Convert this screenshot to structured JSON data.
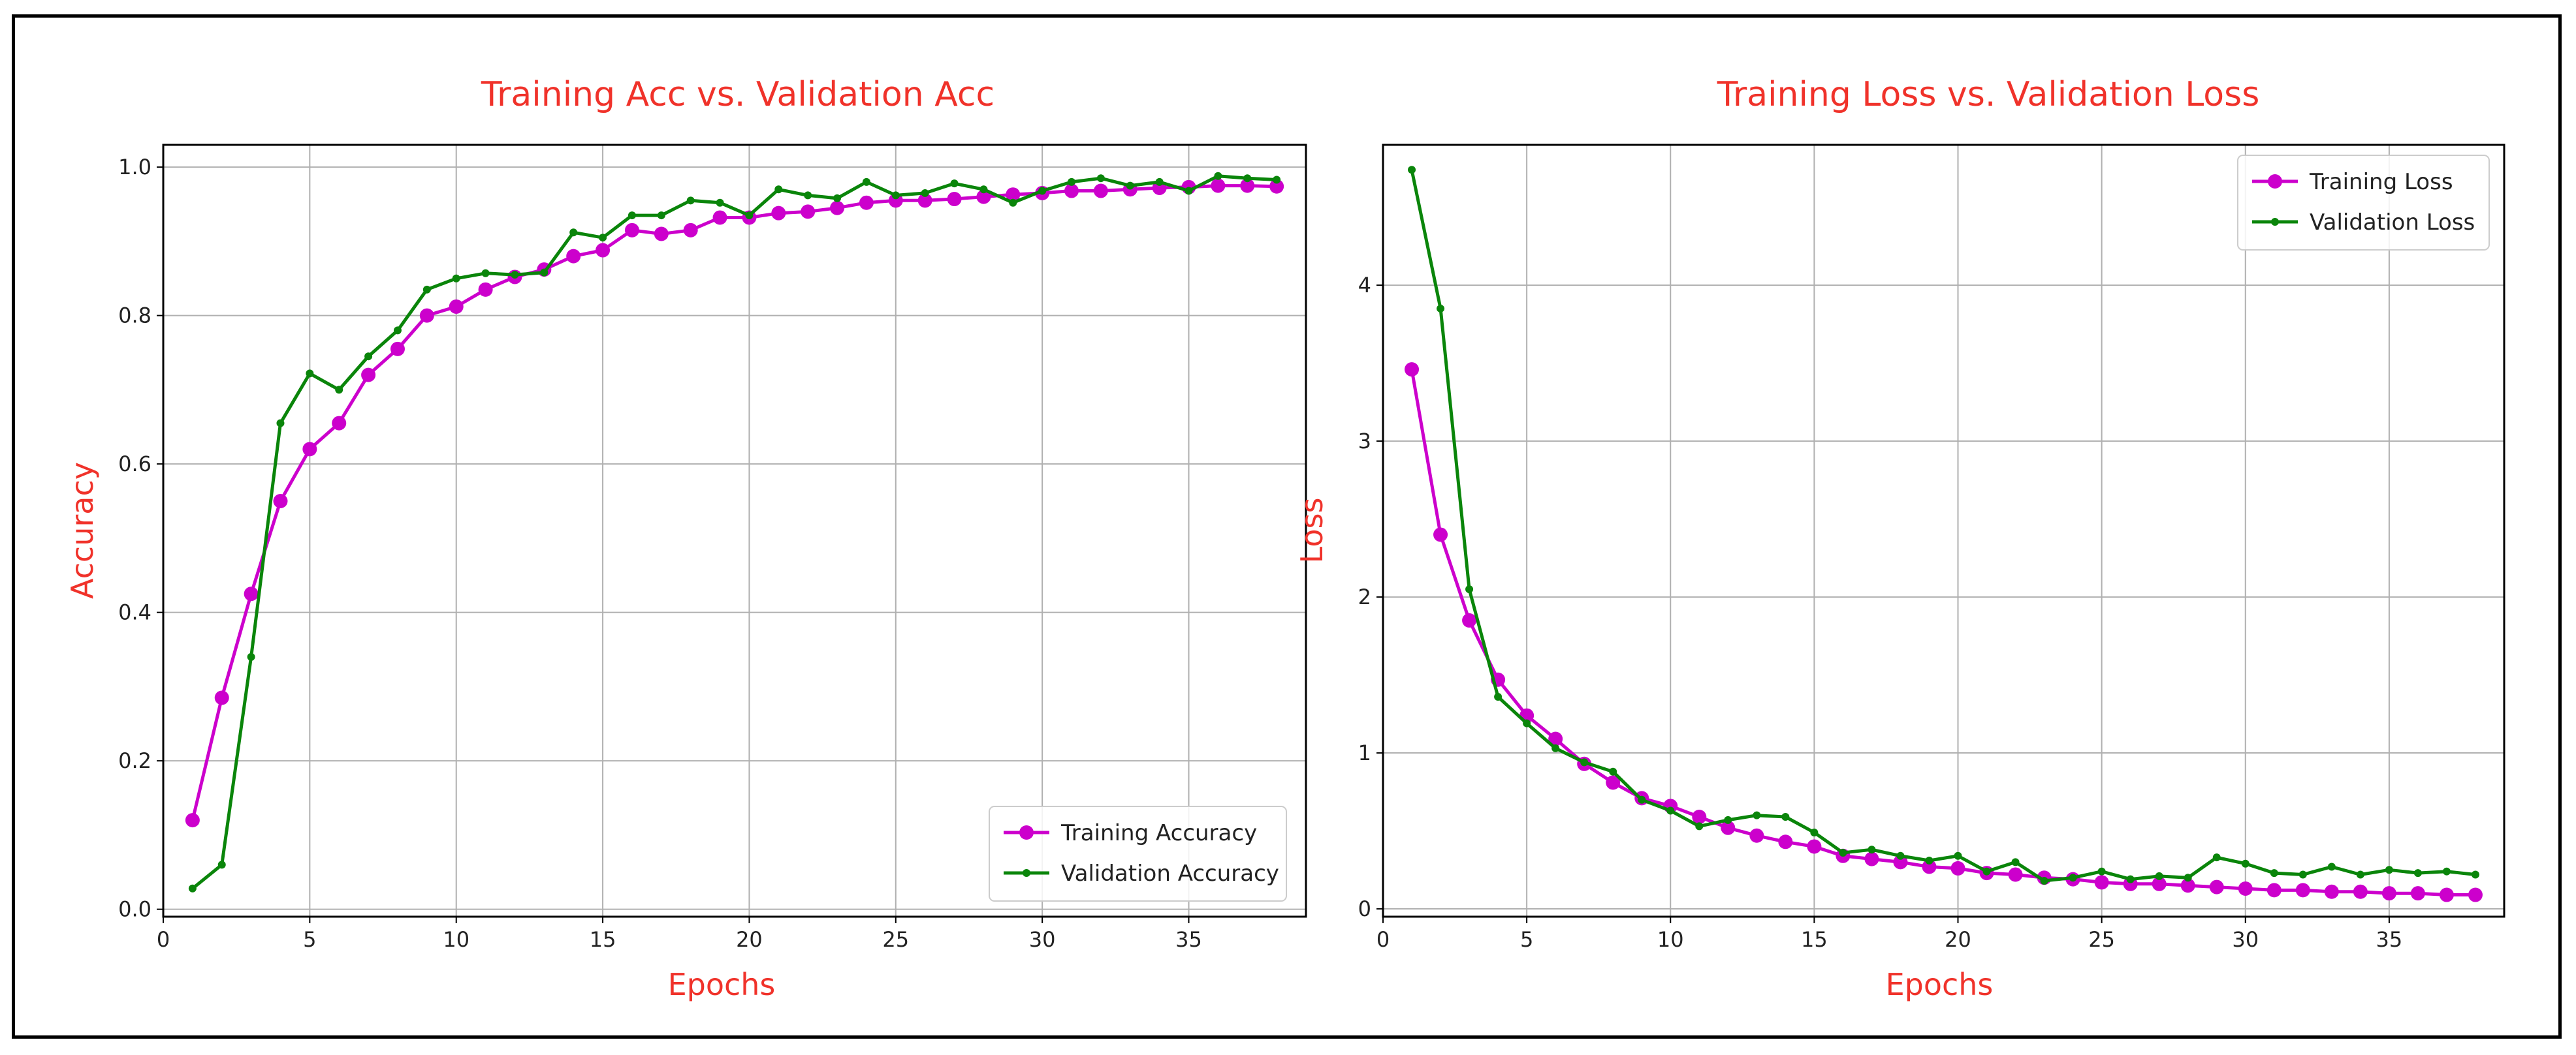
{
  "chart_data": [
    {
      "type": "line",
      "title": "Training Acc vs. Validation Acc",
      "xlabel": "Epochs",
      "ylabel": "Accuracy",
      "xlim": [
        0,
        39
      ],
      "ylim": [
        -0.01,
        1.03
      ],
      "xticks": [
        "0",
        "5",
        "10",
        "15",
        "20",
        "25",
        "30",
        "35"
      ],
      "yticks": [
        "0.0",
        "0.2",
        "0.4",
        "0.6",
        "0.8",
        "1.0"
      ],
      "grid": true,
      "legend": "lower-right",
      "x": [
        1,
        2,
        3,
        4,
        5,
        6,
        7,
        8,
        9,
        10,
        11,
        12,
        13,
        14,
        15,
        16,
        17,
        18,
        19,
        20,
        21,
        22,
        23,
        24,
        25,
        26,
        27,
        28,
        29,
        30,
        31,
        32,
        33,
        34,
        35,
        36,
        37,
        38
      ],
      "series": [
        {
          "name": "Training Accuracy",
          "color": "#cc00cc",
          "marker": "circle",
          "values": [
            0.12,
            0.285,
            0.425,
            0.55,
            0.62,
            0.655,
            0.72,
            0.755,
            0.8,
            0.812,
            0.835,
            0.852,
            0.862,
            0.88,
            0.888,
            0.915,
            0.91,
            0.915,
            0.932,
            0.932,
            0.938,
            0.94,
            0.945,
            0.952,
            0.955,
            0.955,
            0.957,
            0.96,
            0.963,
            0.965,
            0.968,
            0.968,
            0.97,
            0.972,
            0.973,
            0.975,
            0.975,
            0.974
          ]
        },
        {
          "name": "Validation Accuracy",
          "color": "#0a850a",
          "marker": "dot",
          "values": [
            0.028,
            0.06,
            0.34,
            0.655,
            0.722,
            0.7,
            0.745,
            0.78,
            0.835,
            0.85,
            0.857,
            0.855,
            0.858,
            0.912,
            0.905,
            0.935,
            0.935,
            0.955,
            0.952,
            0.935,
            0.97,
            0.962,
            0.958,
            0.98,
            0.962,
            0.965,
            0.978,
            0.97,
            0.952,
            0.968,
            0.98,
            0.985,
            0.975,
            0.98,
            0.968,
            0.988,
            0.985,
            0.983
          ]
        }
      ]
    },
    {
      "type": "line",
      "title": "Training Loss vs. Validation Loss",
      "xlabel": "Epochs",
      "ylabel": "Loss",
      "xlim": [
        0,
        39
      ],
      "ylim": [
        -0.05,
        4.9
      ],
      "xticks": [
        "0",
        "5",
        "10",
        "15",
        "20",
        "25",
        "30",
        "35"
      ],
      "yticks": [
        "0",
        "1",
        "2",
        "3",
        "4"
      ],
      "grid": true,
      "legend": "upper-right",
      "x": [
        1,
        2,
        3,
        4,
        5,
        6,
        7,
        8,
        9,
        10,
        11,
        12,
        13,
        14,
        15,
        16,
        17,
        18,
        19,
        20,
        21,
        22,
        23,
        24,
        25,
        26,
        27,
        28,
        29,
        30,
        31,
        32,
        33,
        34,
        35,
        36,
        37,
        38
      ],
      "series": [
        {
          "name": "Training Loss",
          "color": "#cc00cc",
          "marker": "circle",
          "values": [
            3.46,
            2.4,
            1.85,
            1.47,
            1.24,
            1.09,
            0.93,
            0.81,
            0.71,
            0.66,
            0.59,
            0.52,
            0.47,
            0.43,
            0.4,
            0.34,
            0.32,
            0.3,
            0.27,
            0.26,
            0.23,
            0.22,
            0.2,
            0.19,
            0.17,
            0.16,
            0.16,
            0.15,
            0.14,
            0.13,
            0.12,
            0.12,
            0.11,
            0.11,
            0.1,
            0.1,
            0.09,
            0.09
          ]
        },
        {
          "name": "Validation Loss",
          "color": "#0a850a",
          "marker": "dot",
          "values": [
            4.74,
            3.85,
            2.05,
            1.36,
            1.19,
            1.03,
            0.94,
            0.88,
            0.7,
            0.63,
            0.53,
            0.57,
            0.6,
            0.59,
            0.49,
            0.36,
            0.38,
            0.34,
            0.31,
            0.34,
            0.24,
            0.3,
            0.18,
            0.2,
            0.24,
            0.19,
            0.21,
            0.2,
            0.33,
            0.29,
            0.23,
            0.22,
            0.27,
            0.22,
            0.25,
            0.23,
            0.24,
            0.22
          ]
        }
      ]
    }
  ]
}
